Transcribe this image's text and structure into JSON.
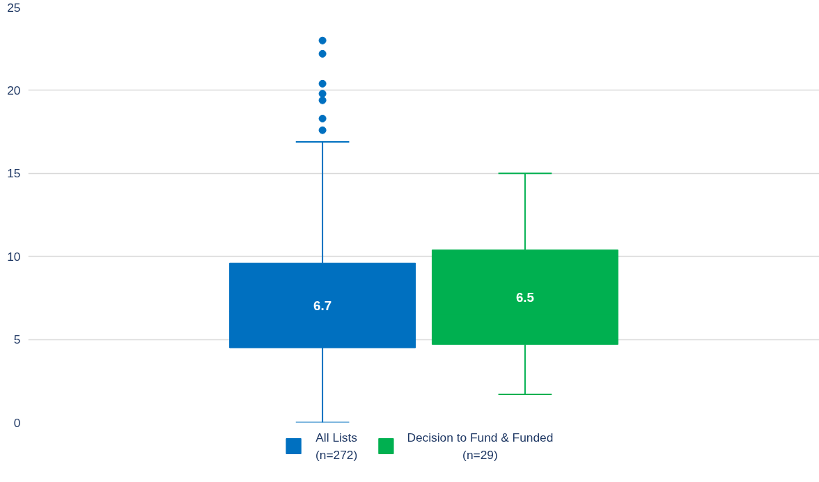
{
  "chart_data": {
    "type": "box",
    "categories": [
      null
    ],
    "series": [
      {
        "name": "All Lists\n(n=272)",
        "color": "#0070c0",
        "boxes": [
          {
            "low": 0,
            "q1": 4.5,
            "median": 6.7,
            "q3": 9.6,
            "high": 16.9,
            "outliers": [
              23.0,
              22.2,
              20.4,
              19.8,
              19.4,
              18.3,
              17.6
            ]
          }
        ],
        "value_labels": [
          "6.7"
        ]
      },
      {
        "name": "Decision to Fund & Funded\n(n=29)",
        "color": "#00b050",
        "boxes": [
          {
            "low": 1.7,
            "q1": 4.7,
            "median": 6.5,
            "q3": 10.4,
            "high": 15.0
          }
        ],
        "value_labels": [
          "6.5"
        ]
      }
    ],
    "ylim": [
      0,
      25
    ],
    "yticks": [
      0,
      5,
      10,
      15,
      20,
      25
    ],
    "grid": "y",
    "legend": "bottom",
    "tick_labels": "y"
  }
}
